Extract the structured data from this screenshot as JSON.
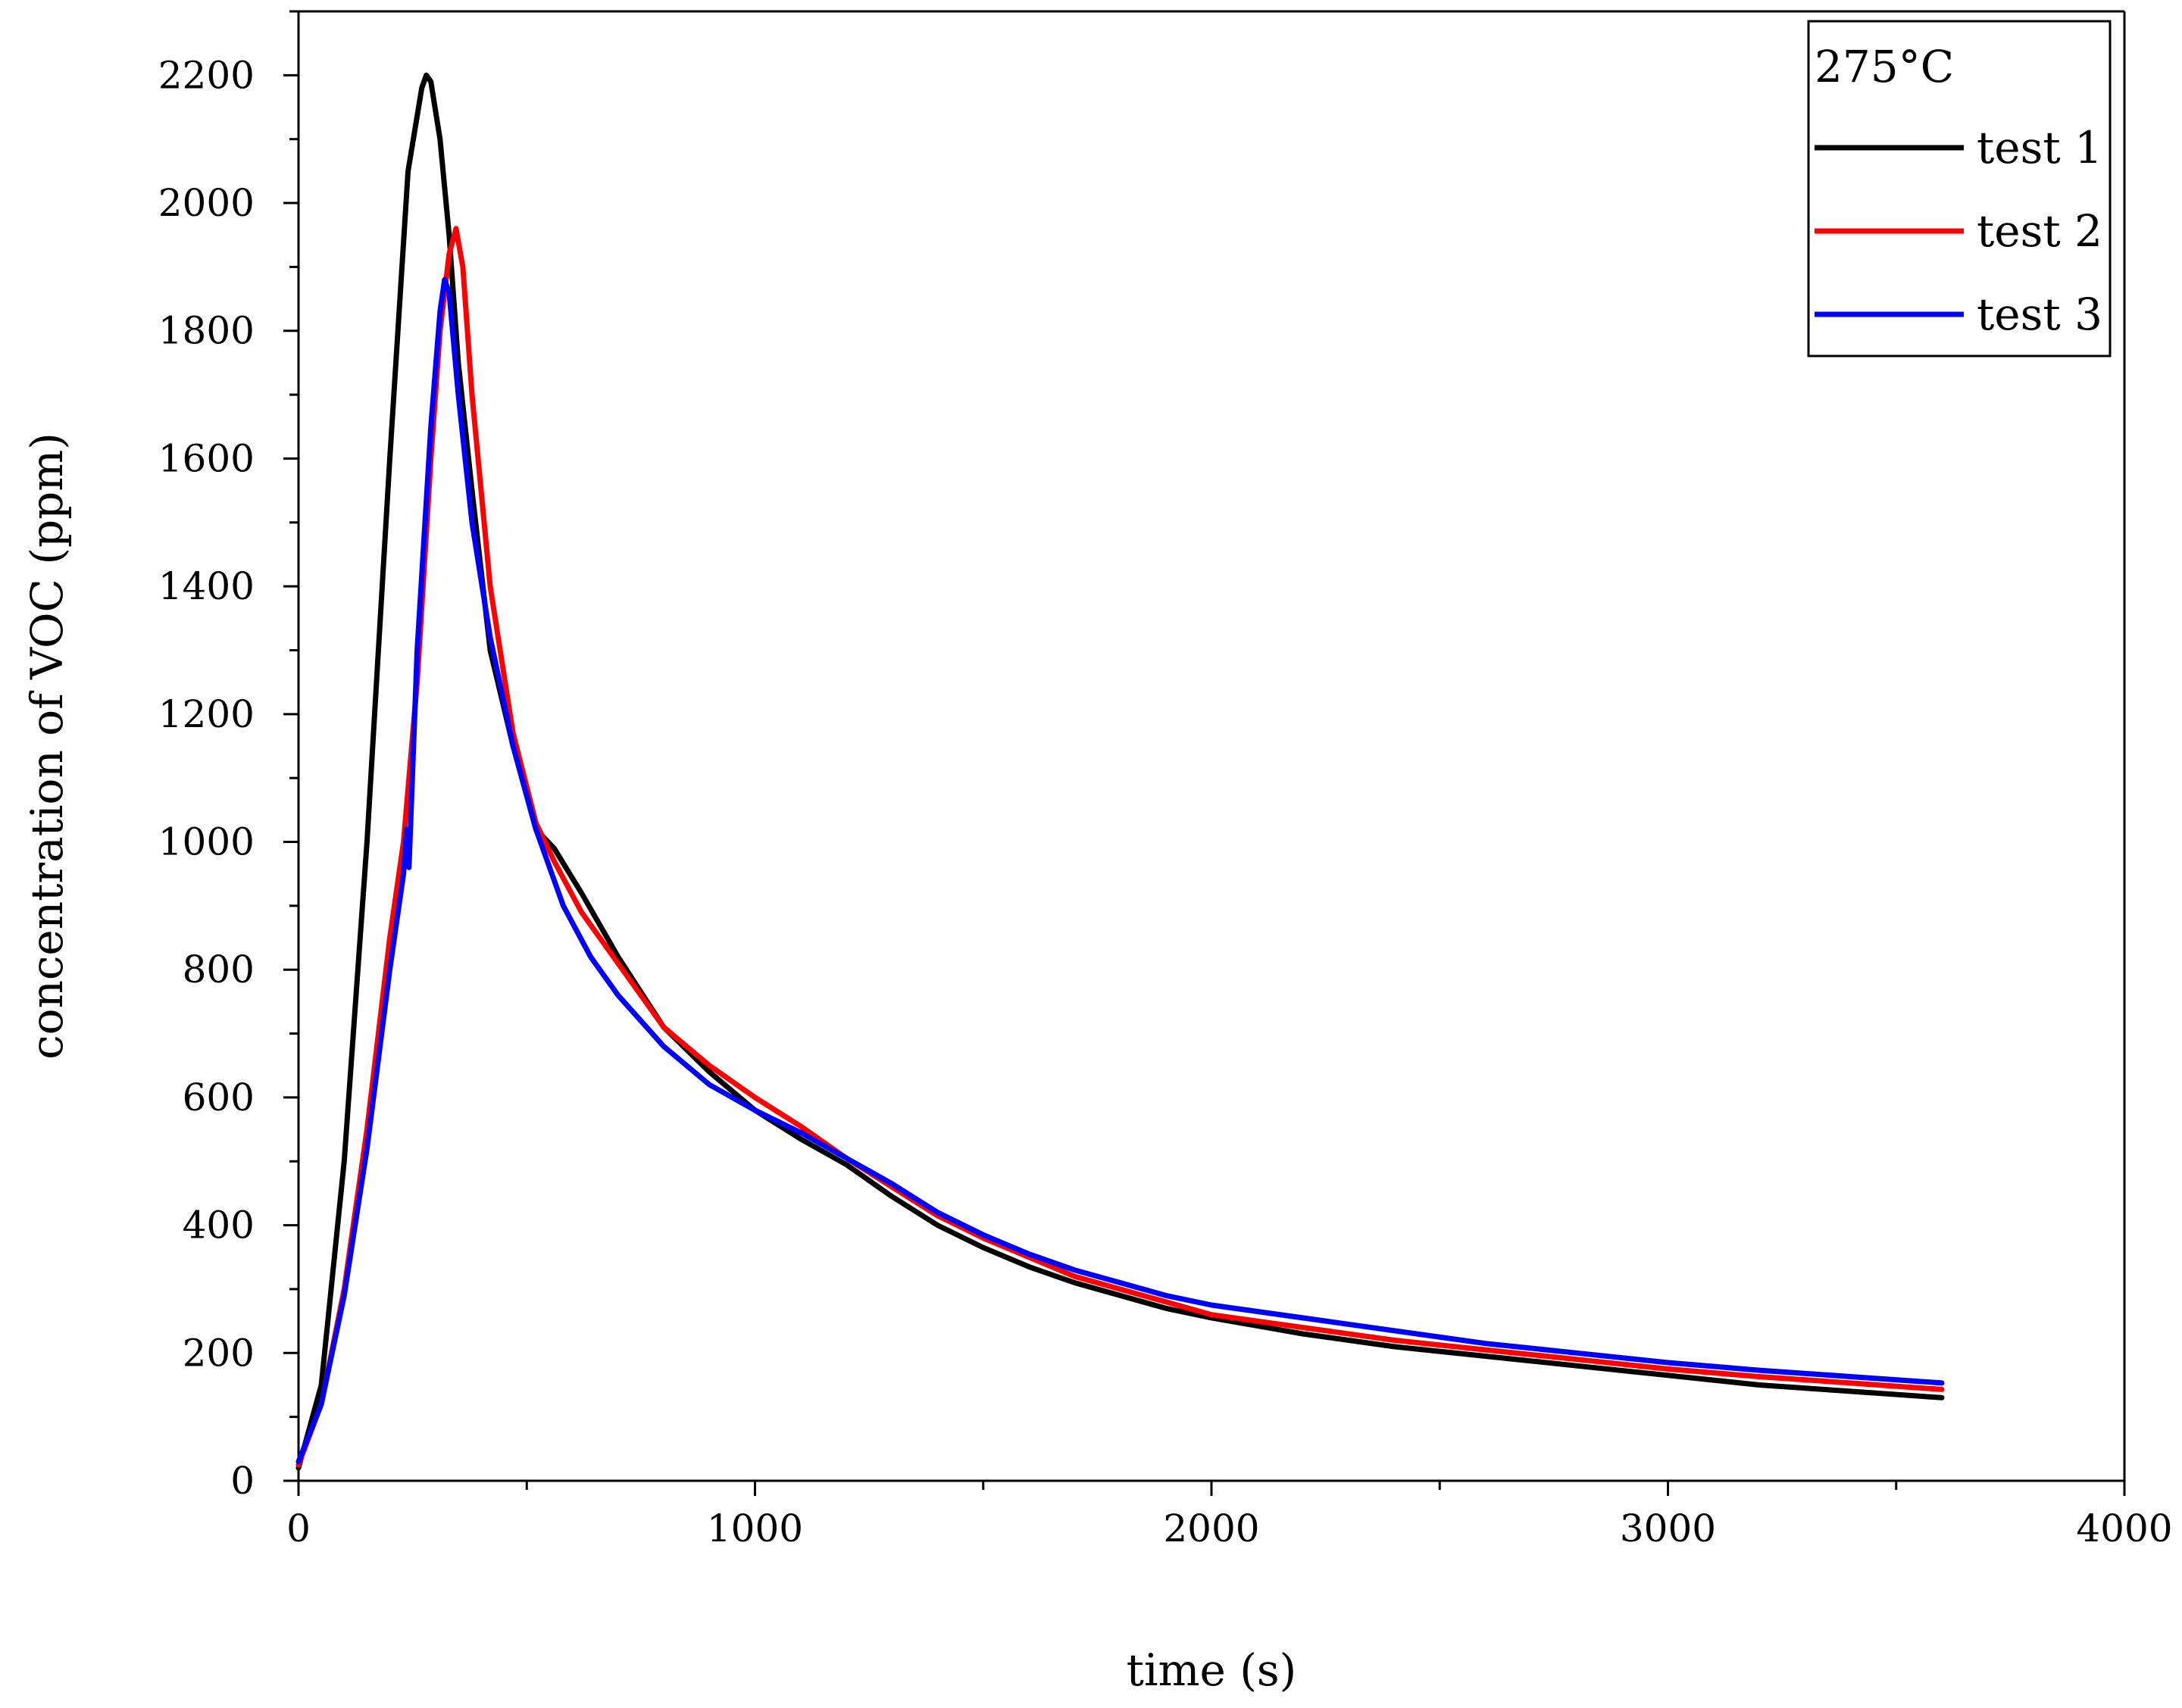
{
  "chart_data": {
    "type": "line",
    "title": "",
    "xlabel": "time (s)",
    "ylabel": "concentration of VOC (ppm)",
    "xlim": [
      0,
      4000
    ],
    "ylim": [
      0,
      2300
    ],
    "x_ticks": [
      0,
      1000,
      2000,
      3000,
      4000
    ],
    "y_ticks": [
      0,
      200,
      400,
      600,
      800,
      1000,
      1200,
      1400,
      1600,
      1800,
      2000,
      2200
    ],
    "grid": false,
    "legend": {
      "title": "275°C",
      "placement": "top-right"
    },
    "series": [
      {
        "name": "test 1",
        "color": "#000000",
        "x": [
          0,
          50,
          100,
          150,
          200,
          240,
          270,
          280,
          290,
          310,
          330,
          350,
          380,
          420,
          470,
          520,
          560,
          620,
          700,
          800,
          900,
          1000,
          1100,
          1200,
          1300,
          1400,
          1500,
          1600,
          1700,
          1800,
          1900,
          2000,
          2200,
          2400,
          2600,
          2800,
          3000,
          3200,
          3400,
          3600
        ],
        "y": [
          20,
          150,
          500,
          1000,
          1600,
          2050,
          2180,
          2200,
          2190,
          2100,
          1950,
          1750,
          1550,
          1300,
          1150,
          1020,
          990,
          920,
          820,
          710,
          640,
          580,
          535,
          495,
          445,
          400,
          365,
          335,
          310,
          290,
          270,
          255,
          230,
          210,
          195,
          180,
          165,
          150,
          140,
          130
        ]
      },
      {
        "name": "test 2",
        "color": "#ff0000",
        "x": [
          0,
          50,
          100,
          150,
          200,
          230,
          260,
          290,
          310,
          330,
          345,
          360,
          380,
          420,
          470,
          520,
          560,
          620,
          700,
          800,
          900,
          1000,
          1100,
          1200,
          1300,
          1400,
          1500,
          1600,
          1700,
          1800,
          1900,
          2000,
          2200,
          2400,
          2600,
          2800,
          3000,
          3200,
          3400,
          3600
        ],
        "y": [
          25,
          120,
          300,
          550,
          850,
          1000,
          1250,
          1600,
          1800,
          1920,
          1960,
          1900,
          1700,
          1400,
          1170,
          1030,
          970,
          890,
          810,
          710,
          650,
          600,
          555,
          505,
          460,
          415,
          380,
          350,
          320,
          300,
          280,
          260,
          240,
          220,
          205,
          190,
          175,
          163,
          153,
          143
        ]
      },
      {
        "name": "test 3",
        "color": "#0000ff",
        "x": [
          0,
          50,
          100,
          150,
          200,
          230,
          237,
          242,
          260,
          290,
          310,
          320,
          330,
          350,
          380,
          420,
          470,
          520,
          580,
          640,
          700,
          800,
          900,
          1000,
          1100,
          1200,
          1300,
          1400,
          1500,
          1600,
          1700,
          1800,
          1900,
          2000,
          2200,
          2400,
          2600,
          2800,
          3000,
          3200,
          3400,
          3600
        ],
        "y": [
          30,
          120,
          290,
          520,
          800,
          950,
          1020,
          960,
          1300,
          1650,
          1830,
          1880,
          1860,
          1700,
          1500,
          1320,
          1150,
          1020,
          900,
          820,
          760,
          680,
          620,
          580,
          545,
          505,
          465,
          420,
          385,
          355,
          330,
          310,
          290,
          275,
          255,
          235,
          215,
          200,
          185,
          173,
          163,
          153
        ]
      }
    ]
  }
}
